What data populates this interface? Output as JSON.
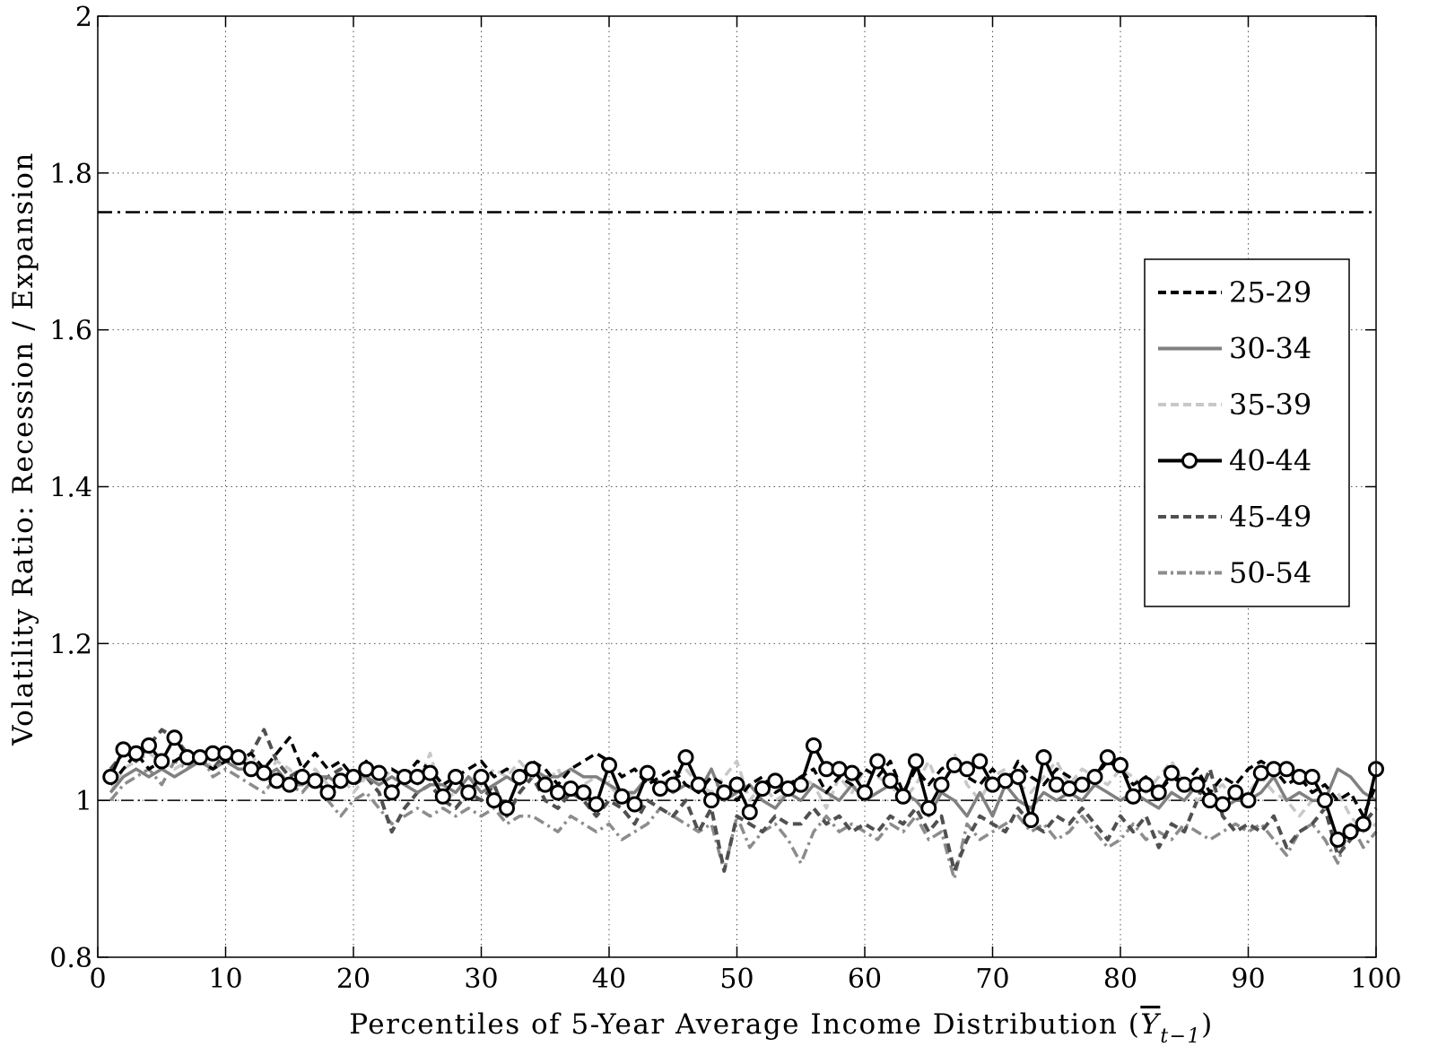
{
  "chart_data": {
    "type": "line",
    "xlabel_text": "Percentiles of 5-Year Average Income Distribution (",
    "xlabel_var": "Y",
    "xlabel_sub": "t−1",
    "xlabel_close": ")",
    "ylabel": "Volatility Ratio: Recession / Expansion",
    "xlim": [
      0,
      100
    ],
    "ylim": [
      0.8,
      2
    ],
    "xticks": [
      "0",
      "10",
      "20",
      "30",
      "40",
      "50",
      "60",
      "70",
      "80",
      "90",
      "100"
    ],
    "yticks": [
      "0.8",
      "1",
      "1.2",
      "1.4",
      "1.6",
      "1.8",
      "2"
    ],
    "grid": true,
    "legend_position": "right",
    "reference_lines": [
      {
        "y": 1.0,
        "style": "dash-dot",
        "thin": true
      },
      {
        "y": 1.75,
        "style": "dash-dot",
        "thin": false
      }
    ],
    "series": [
      {
        "name": "25-29",
        "color": "#000000",
        "style": "dashed",
        "marker": "none",
        "y": [
          1.02,
          1.04,
          1.06,
          1.04,
          1.05,
          1.05,
          1.06,
          1.05,
          1.04,
          1.05,
          1.05,
          1.06,
          1.04,
          1.06,
          1.08,
          1.04,
          1.06,
          1.04,
          1.05,
          1.03,
          1.05,
          1.03,
          1.04,
          1.03,
          1.05,
          1.04,
          1.02,
          1.03,
          1.04,
          1.05,
          1.03,
          1.04,
          1.03,
          1.05,
          1.04,
          1.02,
          1.04,
          1.05,
          1.06,
          1.05,
          1.03,
          1.04,
          1.02,
          1.03,
          1.04,
          1.02,
          1.01,
          1.03,
          1.02,
          1.0,
          1.02,
          1.03,
          1.01,
          1.02,
          1.03,
          1.04,
          1.01,
          1.03,
          1.02,
          1.04,
          1.03,
          1.05,
          1.01,
          1.04,
          1.02,
          1.04,
          1.05,
          1.03,
          1.02,
          1.04,
          1.02,
          1.05,
          1.03,
          1.02,
          1.04,
          1.03,
          1.01,
          1.03,
          1.05,
          1.04,
          1.02,
          1.03,
          1.01,
          1.03,
          1.02,
          1.04,
          1.01,
          1.03,
          1.02,
          1.04,
          1.05,
          1.04,
          1.02,
          1.03,
          1.01,
          1.02,
          1.0,
          1.01,
          0.98,
          1.02
        ]
      },
      {
        "name": "30-34",
        "color": "#808080",
        "style": "solid",
        "marker": "none",
        "y": [
          1.01,
          1.03,
          1.04,
          1.03,
          1.04,
          1.03,
          1.04,
          1.05,
          1.04,
          1.05,
          1.04,
          1.04,
          1.03,
          1.04,
          1.02,
          1.02,
          1.03,
          1.03,
          1.02,
          1.03,
          1.03,
          1.02,
          1.03,
          1.02,
          1.01,
          1.02,
          1.02,
          1.01,
          1.03,
          1.01,
          1.02,
          1.03,
          1.02,
          1.04,
          1.03,
          1.03,
          1.04,
          1.03,
          1.03,
          1.02,
          1.01,
          1.01,
          1.03,
          1.02,
          1.01,
          1.02,
          1.01,
          1.04,
          1.0,
          1.01,
          1.02,
          1.0,
          0.99,
          1.01,
          1.0,
          1.02,
          1.01,
          1.0,
          1.02,
          1.0,
          1.01,
          1.02,
          1.01,
          1.0,
          0.98,
          1.01,
          1.0,
          0.98,
          1.01,
          0.98,
          1.02,
          1.0,
          0.99,
          1.01,
          1.0,
          1.01,
          1.0,
          1.02,
          1.01,
          1.0,
          1.01,
          1.0,
          0.99,
          1.01,
          1.0,
          1.02,
          1.0,
          0.99,
          1.0,
          1.0,
          1.01,
          1.03,
          1.0,
          1.01,
          1.0,
          1.0,
          1.04,
          1.03,
          1.01,
          1.0
        ]
      },
      {
        "name": "35-39",
        "color": "#c8c8c8",
        "style": "dashed",
        "marker": "none",
        "y": [
          1.01,
          1.04,
          1.05,
          1.06,
          1.05,
          1.04,
          1.05,
          1.06,
          1.04,
          1.05,
          1.04,
          1.06,
          1.03,
          1.05,
          1.04,
          1.02,
          1.04,
          1.02,
          1.03,
          1.01,
          1.03,
          1.02,
          1.04,
          1.03,
          1.02,
          1.06,
          1.0,
          1.01,
          1.03,
          1.02,
          1.04,
          1.03,
          1.05,
          1.03,
          1.02,
          1.04,
          1.01,
          1.02,
          1.03,
          1.02,
          1.0,
          1.01,
          1.03,
          1.02,
          1.03,
          1.04,
          1.02,
          1.01,
          1.03,
          1.05,
          1.0,
          1.02,
          1.0,
          1.01,
          1.03,
          1.02,
          0.99,
          1.03,
          1.01,
          1.04,
          1.03,
          1.02,
          1.0,
          1.02,
          1.05,
          1.01,
          1.06,
          1.02,
          1.0,
          1.03,
          1.04,
          1.02,
          1.01,
          1.03,
          1.05,
          1.02,
          1.04,
          1.03,
          1.02,
          1.04,
          1.03,
          1.01,
          1.03,
          1.05,
          1.02,
          1.0,
          1.01,
          1.02,
          1.0,
          1.01,
          1.03,
          1.01,
          1.0,
          0.98,
          1.0,
          0.99,
          1.01,
          0.98,
          0.96,
          0.97
        ]
      },
      {
        "name": "40-44",
        "color": "#000000",
        "style": "solid",
        "marker": "circle",
        "y": [
          1.03,
          1.065,
          1.06,
          1.07,
          1.05,
          1.08,
          1.055,
          1.055,
          1.06,
          1.06,
          1.055,
          1.04,
          1.035,
          1.025,
          1.02,
          1.03,
          1.025,
          1.01,
          1.025,
          1.03,
          1.04,
          1.035,
          1.01,
          1.03,
          1.03,
          1.035,
          1.005,
          1.03,
          1.01,
          1.03,
          1.0,
          0.99,
          1.03,
          1.04,
          1.02,
          1.01,
          1.015,
          1.01,
          0.995,
          1.045,
          1.005,
          0.995,
          1.035,
          1.015,
          1.02,
          1.055,
          1.02,
          1.0,
          1.01,
          1.02,
          0.985,
          1.015,
          1.025,
          1.015,
          1.02,
          1.07,
          1.04,
          1.04,
          1.035,
          1.01,
          1.05,
          1.025,
          1.005,
          1.05,
          0.99,
          1.02,
          1.045,
          1.04,
          1.05,
          1.02,
          1.025,
          1.03,
          0.975,
          1.055,
          1.02,
          1.015,
          1.02,
          1.03,
          1.055,
          1.045,
          1.005,
          1.02,
          1.01,
          1.035,
          1.02,
          1.02,
          1.0,
          0.995,
          1.01,
          1.0,
          1.035,
          1.04,
          1.04,
          1.03,
          1.03,
          1.0,
          0.95,
          0.96,
          0.97,
          1.04
        ]
      },
      {
        "name": "45-49",
        "color": "#505050",
        "style": "dashed",
        "marker": "none",
        "y": [
          1.04,
          1.06,
          1.05,
          1.07,
          1.09,
          1.08,
          1.06,
          1.05,
          1.04,
          1.06,
          1.05,
          1.06,
          1.09,
          1.05,
          1.03,
          1.04,
          1.02,
          1.03,
          1.04,
          1.02,
          1.03,
          1.01,
          0.96,
          0.99,
          1.01,
          1.02,
          1.0,
          0.99,
          1.01,
          1.0,
          1.02,
          0.98,
          1.01,
          1.03,
          1.0,
          0.99,
          1.01,
          1.0,
          0.98,
          1.0,
          0.99,
          0.97,
          1.0,
          0.99,
          0.98,
          1.0,
          0.96,
          0.99,
          0.91,
          0.98,
          0.97,
          0.96,
          0.98,
          0.97,
          0.97,
          0.99,
          0.97,
          0.98,
          0.96,
          0.97,
          0.96,
          0.98,
          0.97,
          0.99,
          0.96,
          0.98,
          0.91,
          0.95,
          0.98,
          0.97,
          0.96,
          0.99,
          0.97,
          0.96,
          0.98,
          0.97,
          0.99,
          0.97,
          0.95,
          0.98,
          0.96,
          0.98,
          0.94,
          0.97,
          0.96,
          1.0,
          1.04,
          0.98,
          0.96,
          0.97,
          0.96,
          0.98,
          0.94,
          0.96,
          0.97,
          0.99,
          0.93,
          0.95,
          0.97,
          0.99
        ]
      },
      {
        "name": "50-54",
        "color": "#8c8c8c",
        "style": "dashdot",
        "marker": "none",
        "y": [
          1.0,
          1.02,
          1.03,
          1.04,
          1.02,
          1.05,
          1.04,
          1.06,
          1.03,
          1.04,
          1.03,
          1.02,
          1.01,
          1.03,
          1.02,
          1.01,
          1.03,
          1.0,
          0.98,
          1.0,
          1.01,
          0.99,
          0.97,
          0.98,
          0.99,
          0.98,
          0.99,
          0.98,
          0.99,
          0.98,
          0.99,
          0.97,
          0.98,
          0.98,
          0.97,
          0.96,
          0.98,
          0.97,
          0.96,
          0.97,
          0.95,
          0.96,
          0.97,
          0.99,
          0.98,
          0.97,
          0.96,
          0.97,
          0.91,
          0.98,
          0.94,
          0.96,
          0.97,
          0.95,
          0.92,
          0.96,
          0.98,
          0.96,
          0.97,
          0.96,
          0.95,
          0.97,
          0.96,
          0.98,
          0.95,
          0.96,
          0.9,
          0.97,
          0.95,
          0.96,
          0.97,
          0.98,
          0.96,
          0.97,
          0.95,
          0.96,
          0.98,
          0.96,
          0.94,
          0.95,
          0.97,
          0.95,
          0.96,
          0.95,
          0.97,
          0.96,
          0.95,
          0.96,
          0.97,
          0.96,
          0.97,
          0.95,
          0.93,
          0.96,
          0.97,
          0.95,
          0.92,
          0.97,
          0.94,
          0.96
        ]
      }
    ]
  }
}
